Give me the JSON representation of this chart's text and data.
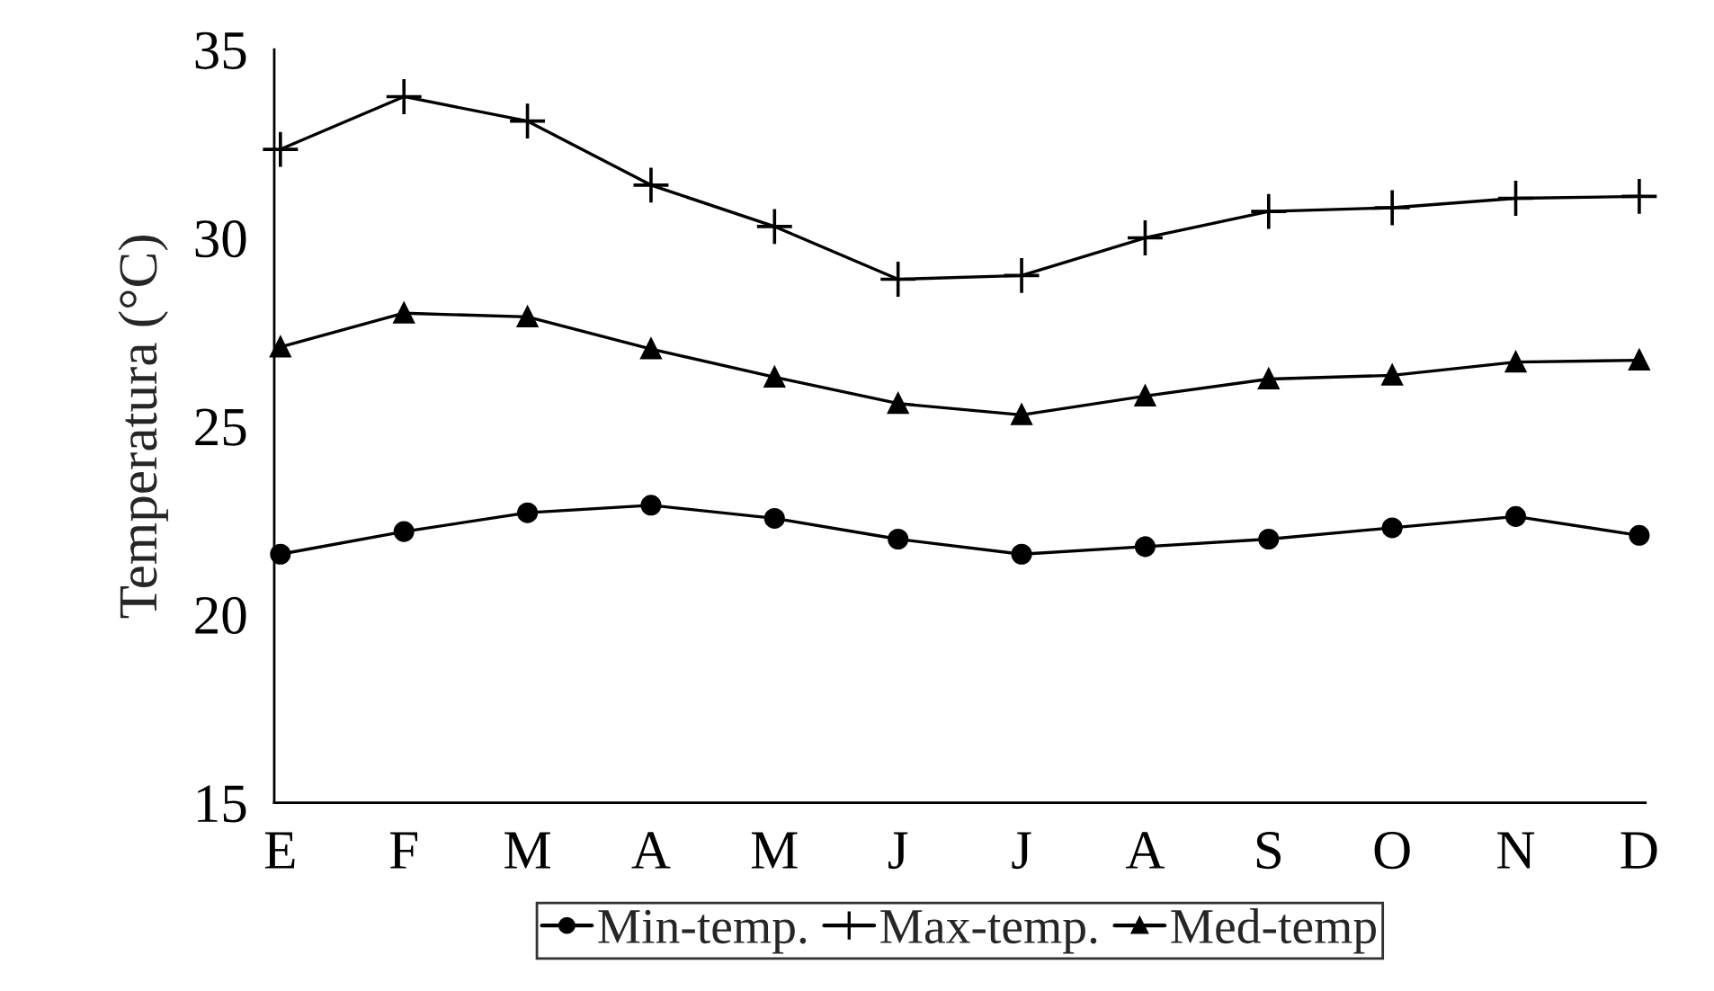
{
  "chart_data": {
    "type": "line",
    "ylabel": "Temperatura (°C)",
    "categories": [
      "E",
      "F",
      "M",
      "A",
      "M",
      "J",
      "J",
      "A",
      "S",
      "O",
      "N",
      "D"
    ],
    "series": [
      {
        "name": "Min-temp.",
        "color": "#000000",
        "marker": "circle",
        "values": [
          21.6,
          22.2,
          22.7,
          22.9,
          22.55,
          22.0,
          21.6,
          21.8,
          22.0,
          22.3,
          22.6,
          22.1
        ]
      },
      {
        "name": "Max-temp.",
        "color": "#000000",
        "marker": "cross",
        "values": [
          32.35,
          33.75,
          33.1,
          31.4,
          30.3,
          28.9,
          29.0,
          30.0,
          30.7,
          30.8,
          31.05,
          31.1
        ]
      },
      {
        "name": "Med-temp",
        "color": "#000000",
        "marker": "triangle",
        "values": [
          27.1,
          28.0,
          27.9,
          27.05,
          26.3,
          25.6,
          25.3,
          25.8,
          26.25,
          26.35,
          26.7,
          26.75
        ]
      }
    ],
    "ylim": [
      15,
      35
    ],
    "yticks": [
      15,
      20,
      25,
      30,
      35
    ],
    "grid": false,
    "legend": "bottom",
    "line_style": "solid"
  }
}
